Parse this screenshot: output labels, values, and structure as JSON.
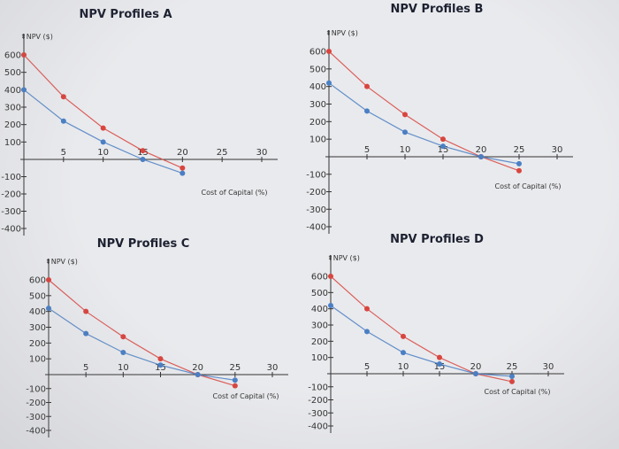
{
  "chart_data": [
    {
      "type": "line",
      "title": "NPV Profiles A",
      "ylabel": "NPV ($)",
      "xlabel": "Cost of Capital (%)",
      "x_ticks": [
        "5",
        "10",
        "15",
        "20",
        "25",
        "30"
      ],
      "y_ticks": [
        "600",
        "500",
        "400",
        "300",
        "200",
        "100",
        "-100",
        "-200",
        "-300",
        "-400"
      ],
      "xlim": [
        0,
        30
      ],
      "ylim": [
        -400,
        600
      ],
      "series": [
        {
          "name": "red",
          "color": "#d9453f",
          "x": [
            0,
            5,
            10,
            15,
            20
          ],
          "y": [
            600,
            360,
            180,
            50,
            -50
          ]
        },
        {
          "name": "blue",
          "color": "#4a7fc4",
          "x": [
            0,
            5,
            10,
            15,
            20
          ],
          "y": [
            400,
            220,
            100,
            0,
            -80
          ]
        }
      ]
    },
    {
      "type": "line",
      "title": "NPV Profiles B",
      "ylabel": "NPV ($)",
      "xlabel": "Cost of Capital (%)",
      "x_ticks": [
        "5",
        "10",
        "15",
        "20",
        "25",
        "30"
      ],
      "y_ticks": [
        "600",
        "500",
        "400",
        "300",
        "200",
        "100",
        "-100",
        "-200",
        "-300",
        "-400"
      ],
      "xlim": [
        0,
        30
      ],
      "ylim": [
        -400,
        600
      ],
      "series": [
        {
          "name": "red",
          "color": "#d9453f",
          "x": [
            0,
            5,
            10,
            15,
            20,
            25
          ],
          "y": [
            600,
            400,
            240,
            100,
            0,
            -80
          ]
        },
        {
          "name": "blue",
          "color": "#4a7fc4",
          "x": [
            0,
            5,
            10,
            15,
            20,
            25
          ],
          "y": [
            420,
            260,
            140,
            60,
            0,
            -40
          ]
        }
      ]
    },
    {
      "type": "line",
      "title": "NPV Profiles C",
      "ylabel": "NPV ($)",
      "xlabel": "Cost of Capital (%)",
      "x_ticks": [
        "5",
        "10",
        "15",
        "20",
        "25",
        "30"
      ],
      "y_ticks": [
        "600",
        "500",
        "400",
        "300",
        "200",
        "100",
        "-100",
        "-200",
        "-300",
        "-400"
      ],
      "xlim": [
        0,
        30
      ],
      "ylim": [
        -400,
        600
      ],
      "series": [
        {
          "name": "red",
          "color": "#d9453f",
          "x": [
            0,
            5,
            10,
            15,
            20,
            25
          ],
          "y": [
            600,
            400,
            240,
            100,
            0,
            -80
          ]
        },
        {
          "name": "blue",
          "color": "#4a7fc4",
          "x": [
            0,
            5,
            10,
            15,
            20,
            25
          ],
          "y": [
            420,
            260,
            140,
            60,
            0,
            -40
          ]
        }
      ]
    },
    {
      "type": "line",
      "title": "NPV Profiles D",
      "ylabel": "NPV ($)",
      "xlabel": "Cost of Capital (%)",
      "x_ticks": [
        "5",
        "10",
        "15",
        "20",
        "25",
        "30"
      ],
      "y_ticks": [
        "600",
        "500",
        "400",
        "300",
        "200",
        "100",
        "-100",
        "-200",
        "-300",
        "-400"
      ],
      "xlim": [
        0,
        30
      ],
      "ylim": [
        -400,
        600
      ],
      "series": [
        {
          "name": "red",
          "color": "#d9453f",
          "x": [
            0,
            5,
            10,
            15,
            20,
            25
          ],
          "y": [
            600,
            400,
            230,
            100,
            0,
            -60
          ]
        },
        {
          "name": "blue",
          "color": "#4a7fc4",
          "x": [
            0,
            5,
            10,
            15,
            20,
            25
          ],
          "y": [
            420,
            260,
            130,
            60,
            0,
            -20
          ]
        }
      ]
    }
  ]
}
